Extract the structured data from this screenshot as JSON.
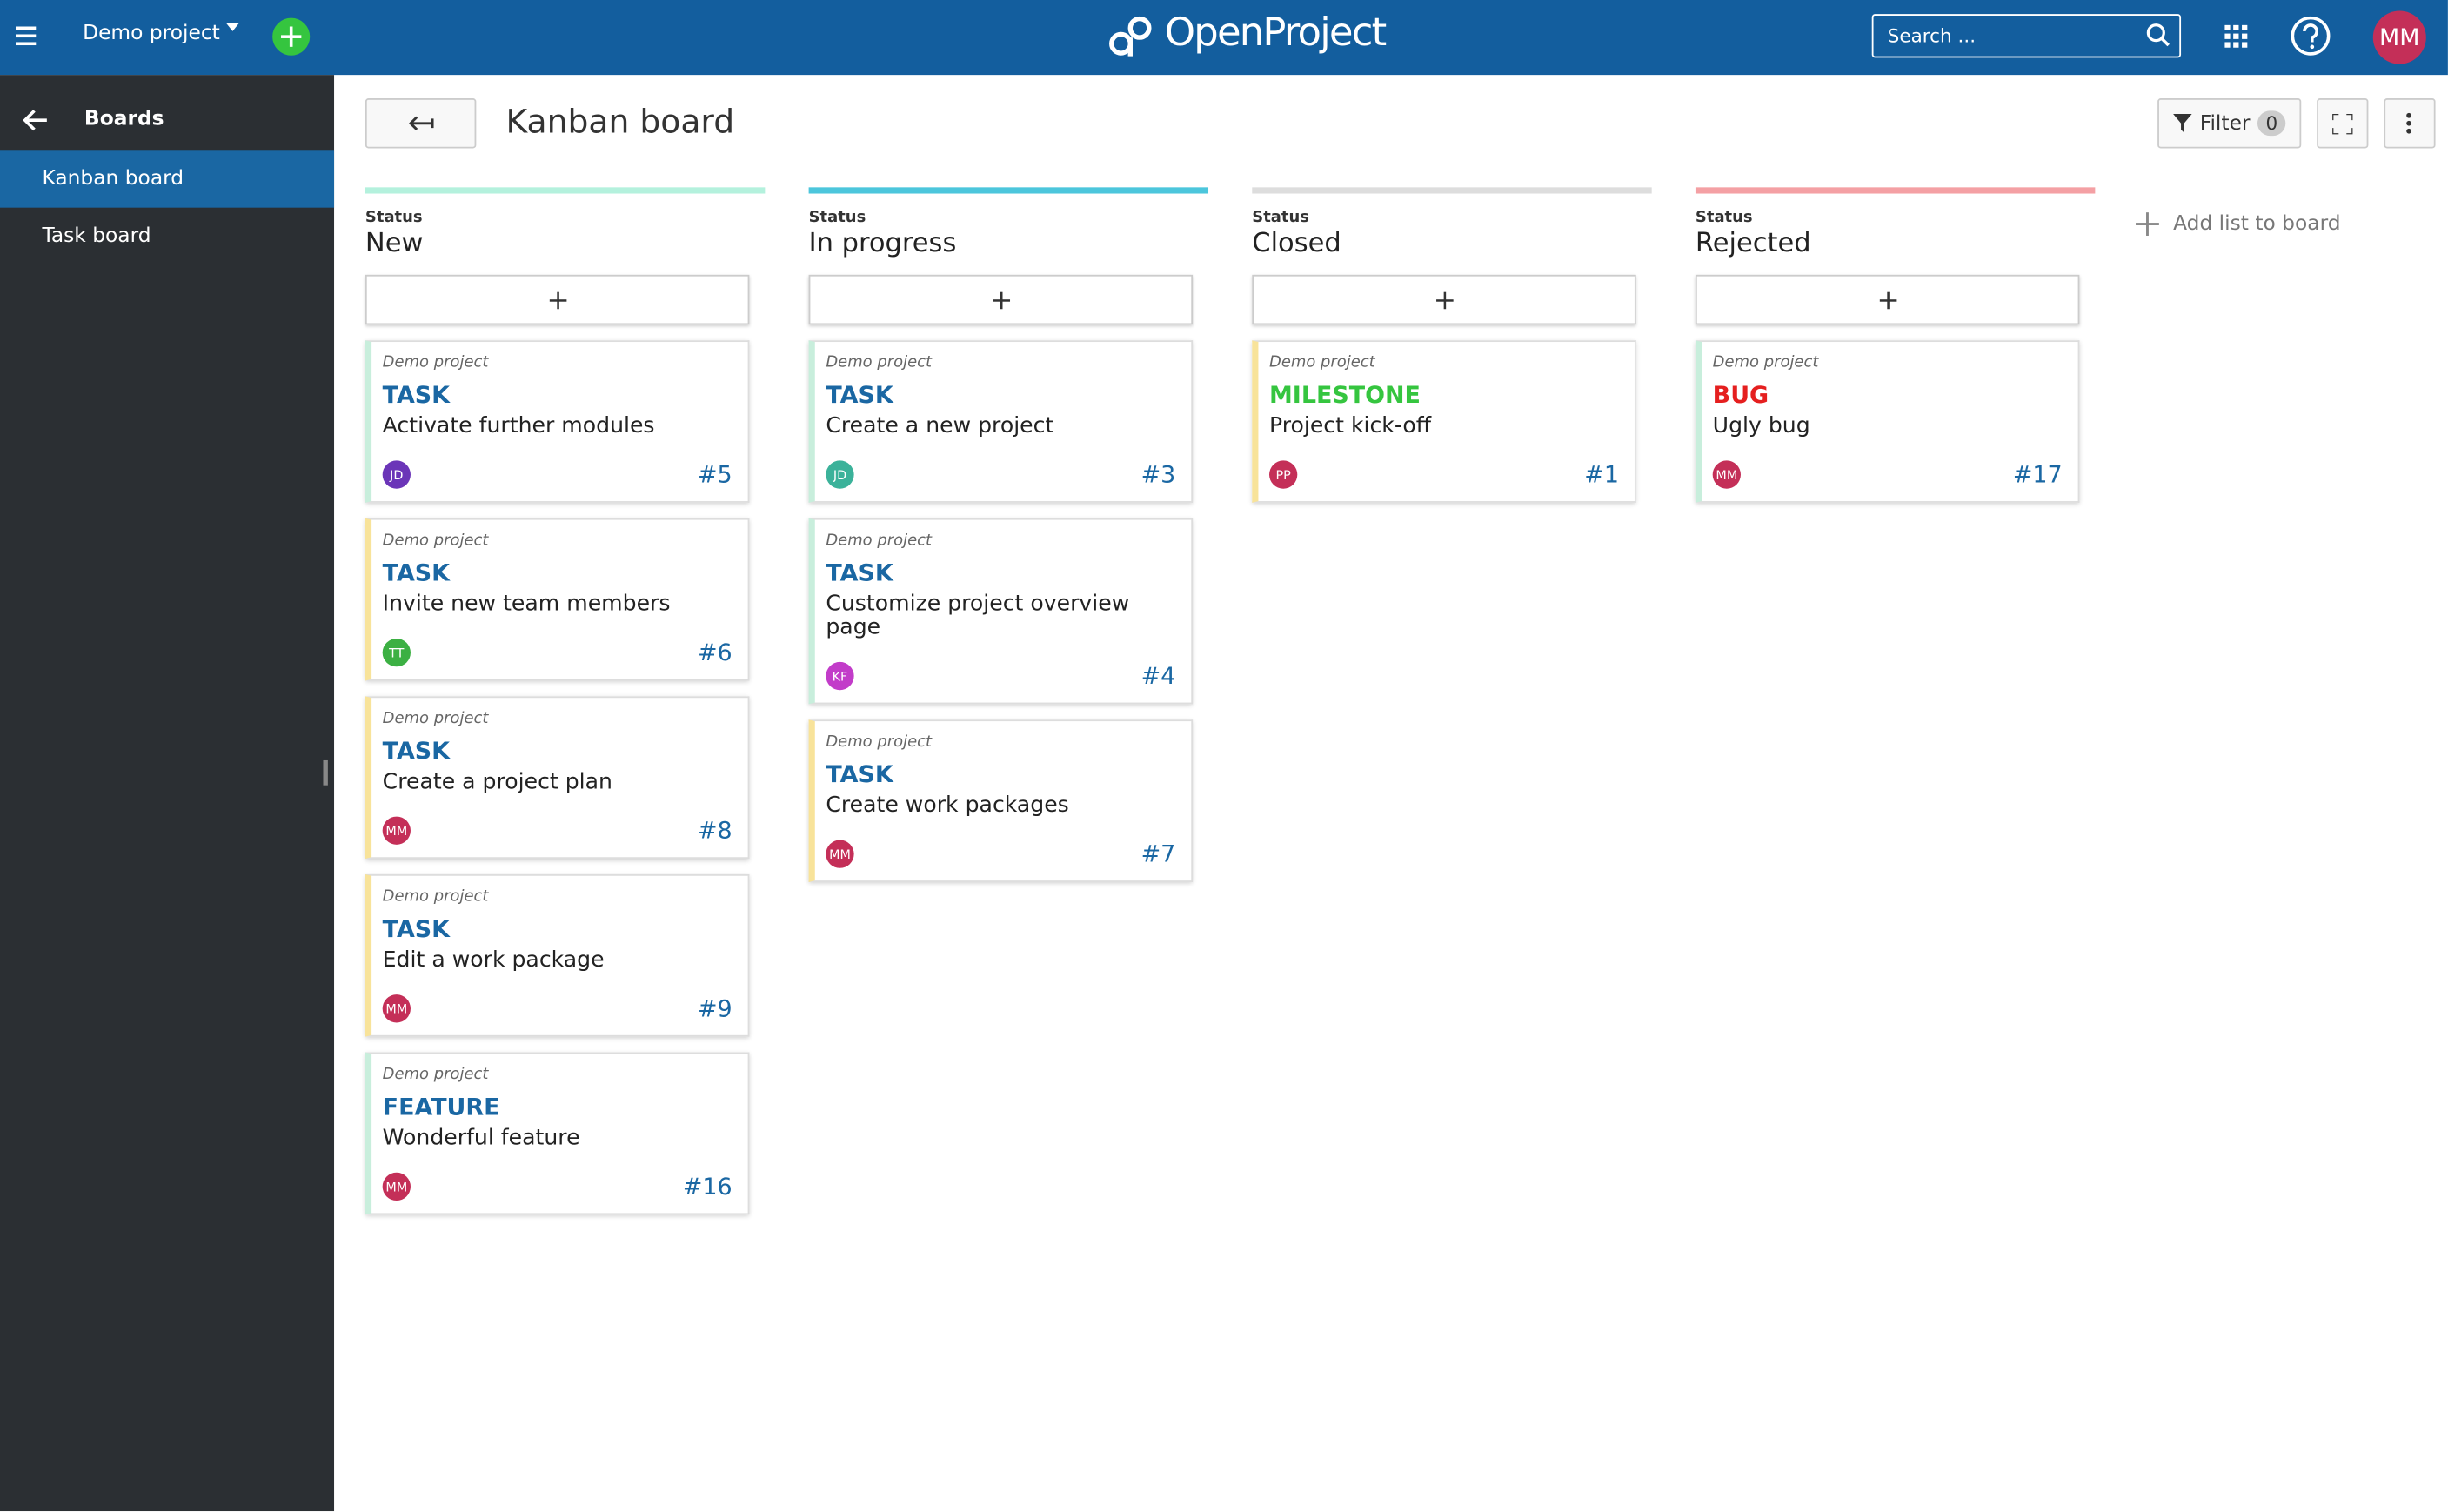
{
  "header": {
    "project": "Demo project",
    "logo": "OpenProject",
    "search_placeholder": "Search ...",
    "user_initials": "MM"
  },
  "sidebar": {
    "title": "Boards",
    "items": [
      "Kanban board",
      "Task board"
    ]
  },
  "toolbar": {
    "title": "Kanban board",
    "filter": "Filter",
    "filter_count": 0
  },
  "columns": [
    {
      "label": "Status",
      "name": "New",
      "color": "#b4f1dd",
      "cards": [
        {
          "project": "Demo project",
          "type": "TASK",
          "type_color": "#1a67a3",
          "subject": "Activate further modules",
          "assignee": "JD",
          "avatar_color": "#6b35b8",
          "number": "#5",
          "stripe": "#c8eedc"
        },
        {
          "project": "Demo project",
          "type": "TASK",
          "type_color": "#1a67a3",
          "subject": "Invite new team members",
          "assignee": "TT",
          "avatar_color": "#3cb043",
          "number": "#6",
          "stripe": "#f8e39a"
        },
        {
          "project": "Demo project",
          "type": "TASK",
          "type_color": "#1a67a3",
          "subject": "Create a project plan",
          "assignee": "MM",
          "avatar_color": "#c42f58",
          "number": "#8",
          "stripe": "#f8e39a"
        },
        {
          "project": "Demo project",
          "type": "TASK",
          "type_color": "#1a67a3",
          "subject": "Edit a work package",
          "assignee": "MM",
          "avatar_color": "#c42f58",
          "number": "#9",
          "stripe": "#f8e39a"
        },
        {
          "project": "Demo project",
          "type": "FEATURE",
          "type_color": "#1a67a3",
          "subject": "Wonderful feature",
          "assignee": "MM",
          "avatar_color": "#c42f58",
          "number": "#16",
          "stripe": "#c8eedc"
        }
      ]
    },
    {
      "label": "Status",
      "name": "In progress",
      "color": "#4cc6dc",
      "cards": [
        {
          "project": "Demo project",
          "type": "TASK",
          "type_color": "#1a67a3",
          "subject": "Create a new project",
          "assignee": "JD",
          "avatar_color": "#3bb29a",
          "number": "#3",
          "stripe": "#c8eedc"
        },
        {
          "project": "Demo project",
          "type": "TASK",
          "type_color": "#1a67a3",
          "subject": "Customize project overview page",
          "assignee": "KF",
          "avatar_color": "#c23cc9",
          "number": "#4",
          "stripe": "#c8eedc"
        },
        {
          "project": "Demo project",
          "type": "TASK",
          "type_color": "#1a67a3",
          "subject": "Create work packages",
          "assignee": "MM",
          "avatar_color": "#c42f58",
          "number": "#7",
          "stripe": "#f8e39a"
        }
      ]
    },
    {
      "label": "Status",
      "name": "Closed",
      "color": "#dddddd",
      "cards": [
        {
          "project": "Demo project",
          "type": "MILESTONE",
          "type_color": "#35c53f",
          "subject": "Project kick-off",
          "assignee": "PP",
          "avatar_color": "#c42f58",
          "number": "#1",
          "stripe": "#f8e39a"
        }
      ]
    },
    {
      "label": "Status",
      "name": "Rejected",
      "color": "#f4a0a4",
      "cards": [
        {
          "project": "Demo project",
          "type": "BUG",
          "type_color": "#e51f1f",
          "subject": "Ugly bug",
          "assignee": "MM",
          "avatar_color": "#c42f58",
          "number": "#17",
          "stripe": "#c8eedc"
        }
      ]
    }
  ],
  "add_list": "Add list to board"
}
